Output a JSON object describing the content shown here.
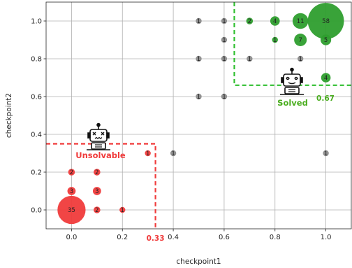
{
  "chart_data": {
    "type": "scatter",
    "xlabel": "checkpoint1",
    "ylabel": "checkpoint2",
    "xlim": [
      -0.1,
      1.1
    ],
    "ylim": [
      -0.1,
      1.1
    ],
    "xticks": [
      "0.0",
      "0.2",
      "0.4",
      "0.6",
      "0.8",
      "1.0"
    ],
    "yticks": [
      "0.0",
      "0.2",
      "0.4",
      "0.6",
      "0.8",
      "1.0"
    ],
    "grid": true,
    "colors": {
      "unsolvable": "#f03b3b",
      "solved": "#2e9e2e",
      "neutral": "#8c8c8c"
    },
    "unsolvable": {
      "label": "Unsolvable",
      "threshold_label": "0.33",
      "threshold": 0.33,
      "icon": "dead-robot-icon",
      "points": [
        {
          "x": 0.0,
          "y": 0.0,
          "count": 35
        },
        {
          "x": 0.0,
          "y": 0.1,
          "count": 3
        },
        {
          "x": 0.0,
          "y": 0.2,
          "count": 2
        },
        {
          "x": 0.1,
          "y": 0.0,
          "count": 2
        },
        {
          "x": 0.1,
          "y": 0.1,
          "count": 3
        },
        {
          "x": 0.1,
          "y": 0.2,
          "count": 2
        },
        {
          "x": 0.2,
          "y": 0.0,
          "count": 1
        },
        {
          "x": 0.3,
          "y": 0.3,
          "count": 1
        }
      ]
    },
    "solved": {
      "label": "Solved",
      "threshold_label": "0.67",
      "threshold": 0.67,
      "icon": "happy-robot-icon",
      "points": [
        {
          "x": 1.0,
          "y": 1.0,
          "count": 58
        },
        {
          "x": 0.9,
          "y": 1.0,
          "count": 11
        },
        {
          "x": 0.9,
          "y": 0.9,
          "count": 7
        },
        {
          "x": 1.0,
          "y": 0.9,
          "count": 5
        },
        {
          "x": 0.8,
          "y": 1.0,
          "count": 4
        },
        {
          "x": 0.7,
          "y": 1.0,
          "count": 2
        },
        {
          "x": 0.8,
          "y": 0.9,
          "count": 1
        },
        {
          "x": 1.0,
          "y": 0.7,
          "count": 4
        }
      ]
    },
    "other": {
      "points": [
        {
          "x": 0.5,
          "y": 1.0,
          "count": 1
        },
        {
          "x": 0.6,
          "y": 1.0,
          "count": 1
        },
        {
          "x": 0.6,
          "y": 0.9,
          "count": 1
        },
        {
          "x": 0.5,
          "y": 0.8,
          "count": 1
        },
        {
          "x": 0.6,
          "y": 0.8,
          "count": 1
        },
        {
          "x": 0.7,
          "y": 0.8,
          "count": 1
        },
        {
          "x": 0.9,
          "y": 0.8,
          "count": 1
        },
        {
          "x": 0.5,
          "y": 0.6,
          "count": 1
        },
        {
          "x": 0.6,
          "y": 0.6,
          "count": 1
        },
        {
          "x": 0.4,
          "y": 0.3,
          "count": 1
        },
        {
          "x": 1.0,
          "y": 0.3,
          "count": 1
        }
      ]
    }
  }
}
